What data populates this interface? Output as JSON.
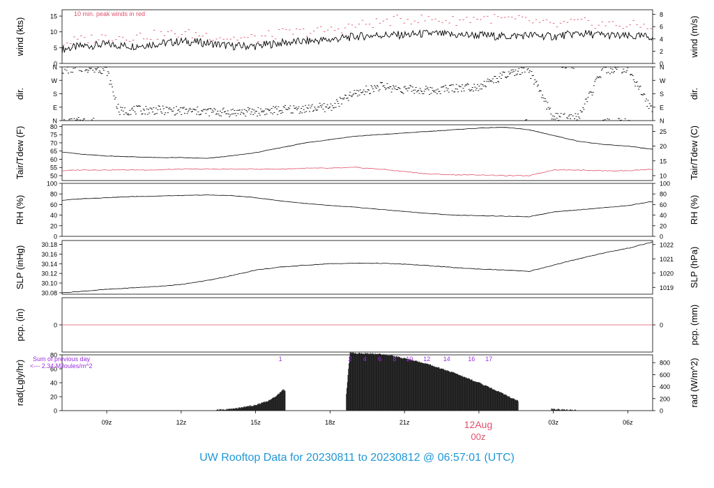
{
  "title": "UW Rooftop Data for 20230811  to  20230812 @ 06:57:01  (UTC)",
  "colors": {
    "main": "#000000",
    "red": "#e0506a",
    "purple": "#9b2fe0",
    "title": "#1f97d6"
  },
  "x_axis": {
    "ticks": [
      {
        "hour": 9,
        "label": "09z"
      },
      {
        "hour": 12,
        "label": "12z"
      },
      {
        "hour": 15,
        "label": "15z"
      },
      {
        "hour": 18,
        "label": "18z"
      },
      {
        "hour": 21,
        "label": "21z"
      },
      {
        "hour": 27,
        "label": "03z"
      },
      {
        "hour": 30,
        "label": "06z"
      }
    ],
    "date_label": "12Aug",
    "date_sub": "00z",
    "range_hours": [
      7.2,
      31.0
    ]
  },
  "chart_data": [
    {
      "id": "wind",
      "type": "line",
      "ylabel_left": "wind (kts)",
      "ylabel_right": "wind (m/s)",
      "annotation": "10 min. peak winds in red",
      "ylim": [
        0,
        17
      ],
      "left_ticks": [
        0,
        5,
        10,
        15
      ],
      "right_ticks": [
        0,
        2,
        4,
        6,
        8
      ],
      "right_scale": 0.5144,
      "series": [
        {
          "x": [
            7.2,
            8,
            9,
            10,
            11,
            12,
            13,
            14,
            15,
            16,
            17,
            18,
            19,
            20,
            21,
            22,
            23,
            24,
            25,
            26,
            27,
            28,
            29,
            30,
            31
          ],
          "y": [
            4.5,
            5.5,
            6.0,
            5.5,
            6.2,
            7.0,
            6.5,
            5.5,
            5.5,
            6.5,
            7.0,
            7.5,
            8.5,
            9.0,
            9.0,
            9.5,
            9.0,
            9.0,
            8.5,
            9.0,
            8.5,
            9.5,
            9.0,
            8.5,
            8.5
          ]
        },
        {
          "name": "10 min. peak winds",
          "x": [
            7.2,
            8,
            9,
            10,
            11,
            12,
            13,
            14,
            15,
            16,
            17,
            18,
            19,
            20,
            21,
            22,
            23,
            24,
            25,
            26,
            27,
            28,
            29,
            30,
            31
          ],
          "y": [
            6.5,
            7.5,
            8.5,
            8.5,
            9.0,
            9.5,
            9.0,
            8.0,
            8.0,
            9.5,
            10.0,
            10.5,
            12.0,
            13.0,
            14.0,
            14.0,
            13.5,
            14.5,
            14.0,
            13.5,
            12.0,
            13.0,
            12.5,
            12.0,
            12.0
          ]
        }
      ]
    },
    {
      "id": "dir",
      "type": "scatter",
      "ylabel_left": "dir.",
      "ylabel_right": "dir.",
      "left_ticks": [
        "N",
        "E",
        "S",
        "W",
        "N"
      ],
      "right_ticks": [
        "N",
        "E",
        "S",
        "W",
        "N"
      ],
      "ylim": [
        0,
        360
      ],
      "series": [
        {
          "x": [
            7.2,
            8,
            8.5,
            9.0,
            9.5,
            10,
            11,
            12,
            13,
            14,
            15,
            16,
            17,
            18,
            19,
            20,
            21,
            22,
            23,
            24,
            25,
            26,
            27,
            28,
            29,
            30,
            31
          ],
          "y": [
            340,
            355,
            350,
            340,
            60,
            70,
            70,
            65,
            60,
            55,
            60,
            70,
            80,
            90,
            180,
            230,
            210,
            200,
            220,
            230,
            300,
            340,
            20,
            20,
            340,
            350,
            60
          ]
        }
      ]
    },
    {
      "id": "temp",
      "type": "line",
      "ylabel_left": "Tair/Tdew (F)",
      "ylabel_right": "Tair/Tdew (C)",
      "ylim": [
        47,
        81
      ],
      "left_ticks": [
        50,
        55,
        60,
        65,
        70,
        75,
        80
      ],
      "right_ticks": [
        10,
        15,
        20,
        25
      ],
      "right_unit": "C",
      "series": [
        {
          "name": "Tair",
          "x": [
            7.2,
            8,
            9,
            10,
            11,
            12,
            13,
            14,
            15,
            16,
            17,
            18,
            19,
            20,
            21,
            22,
            23,
            24,
            25,
            26,
            27,
            28,
            29,
            30,
            31
          ],
          "y": [
            64.5,
            63,
            62,
            61.5,
            61,
            61,
            60.5,
            62,
            64,
            67,
            70,
            72,
            74,
            75,
            76,
            77,
            78,
            79,
            79.5,
            78,
            74.5,
            71,
            69,
            68,
            66
          ]
        },
        {
          "name": "Tdew",
          "x": [
            7.2,
            8,
            9,
            10,
            11,
            12,
            13,
            14,
            15,
            16,
            17,
            18,
            19,
            20,
            21,
            22,
            23,
            24,
            25,
            26,
            27,
            28,
            29,
            30,
            31
          ],
          "y": [
            53,
            53.5,
            53.5,
            53.5,
            53.5,
            54,
            54,
            54,
            54,
            54,
            54.5,
            54.5,
            55,
            54,
            52.5,
            51,
            50.5,
            50.5,
            50,
            50,
            53.5,
            53.5,
            53,
            53,
            54
          ]
        }
      ]
    },
    {
      "id": "rh",
      "type": "line",
      "ylabel_left": "RH (%)",
      "ylabel_right": "RH (%)",
      "ylim": [
        0,
        100
      ],
      "left_ticks": [
        0,
        20,
        40,
        60,
        80,
        100
      ],
      "right_ticks": [
        0,
        20,
        40,
        60,
        80,
        100
      ],
      "series": [
        {
          "x": [
            7.2,
            8,
            9,
            10,
            11,
            12,
            13,
            14,
            15,
            16,
            17,
            18,
            19,
            20,
            21,
            22,
            23,
            24,
            25,
            26,
            27,
            28,
            29,
            30,
            31
          ],
          "y": [
            68,
            71,
            73,
            75,
            76,
            77,
            78,
            77,
            73,
            67,
            62,
            58,
            55,
            51,
            47,
            43,
            40,
            39,
            38,
            37,
            46,
            50,
            54,
            58,
            66
          ]
        }
      ]
    },
    {
      "id": "slp",
      "type": "line",
      "ylabel_left": "SLP (inHg)",
      "ylabel_right": "SLP (hPa)",
      "ylim": [
        30.077,
        30.188
      ],
      "left_ticks": [
        30.08,
        30.1,
        30.12,
        30.14,
        30.16,
        30.18
      ],
      "right_ticks": [
        1019,
        1020,
        1021,
        1022
      ],
      "right_unit": "hPa",
      "series": [
        {
          "x": [
            7.2,
            8,
            9,
            10,
            11,
            12,
            13,
            14,
            15,
            16,
            17,
            18,
            19,
            20,
            21,
            22,
            23,
            24,
            25,
            26,
            27,
            28,
            29,
            30,
            31
          ],
          "y": [
            30.08,
            30.083,
            30.087,
            30.09,
            30.093,
            30.097,
            30.105,
            30.115,
            30.127,
            30.133,
            30.137,
            30.14,
            30.141,
            30.141,
            30.139,
            30.136,
            30.132,
            30.129,
            30.127,
            30.124,
            30.137,
            30.15,
            30.162,
            30.172,
            30.185
          ]
        }
      ]
    },
    {
      "id": "pcp",
      "type": "line",
      "ylabel_left": "pcp. (in)",
      "ylabel_right": "pcp. (mm)",
      "ylim": [
        -0.05,
        0.05
      ],
      "left_ticks": [
        0
      ],
      "right_ticks": [
        0
      ],
      "series": [
        {
          "x": [
            7.2,
            31.0
          ],
          "y": [
            0,
            0
          ]
        }
      ]
    },
    {
      "id": "rad",
      "type": "bar",
      "ylabel_left": "rad(Lgly/hr)",
      "ylabel_right": "rad (W/m^2)",
      "ylim": [
        0,
        80
      ],
      "left_ticks": [
        0,
        20,
        40,
        60,
        80
      ],
      "right_ticks": [
        0,
        200,
        400,
        600,
        800
      ],
      "right_scale": 11.63,
      "sum_note": [
        "Sum of previous day",
        "<--- 2.34 MJoules/m^2"
      ],
      "hour_labels": [
        {
          "hour": 16.0,
          "label": "1"
        },
        {
          "hour": 18.8,
          "label": "2"
        },
        {
          "hour": 19.4,
          "label": "4"
        },
        {
          "hour": 20.0,
          "label": "6"
        },
        {
          "hour": 20.6,
          "label": "8"
        },
        {
          "hour": 21.2,
          "label": "10"
        },
        {
          "hour": 21.9,
          "label": "12"
        },
        {
          "hour": 22.7,
          "label": "14"
        },
        {
          "hour": 23.7,
          "label": "16"
        },
        {
          "hour": 24.4,
          "label": "17"
        }
      ],
      "x": [
        13.5,
        14,
        14.5,
        15,
        15.5,
        15.8,
        16.1,
        18.6,
        18.8,
        19.2,
        19.6,
        20,
        20.5,
        21,
        21.5,
        22,
        22.5,
        23,
        23.5,
        24,
        24.5,
        25,
        25.5,
        27.0,
        27.5
      ],
      "values": [
        1,
        2,
        5,
        8,
        14,
        20,
        30,
        0,
        83,
        82,
        82,
        81,
        79,
        75,
        71,
        66,
        60,
        54,
        47,
        40,
        32,
        24,
        15,
        2,
        1
      ]
    }
  ]
}
